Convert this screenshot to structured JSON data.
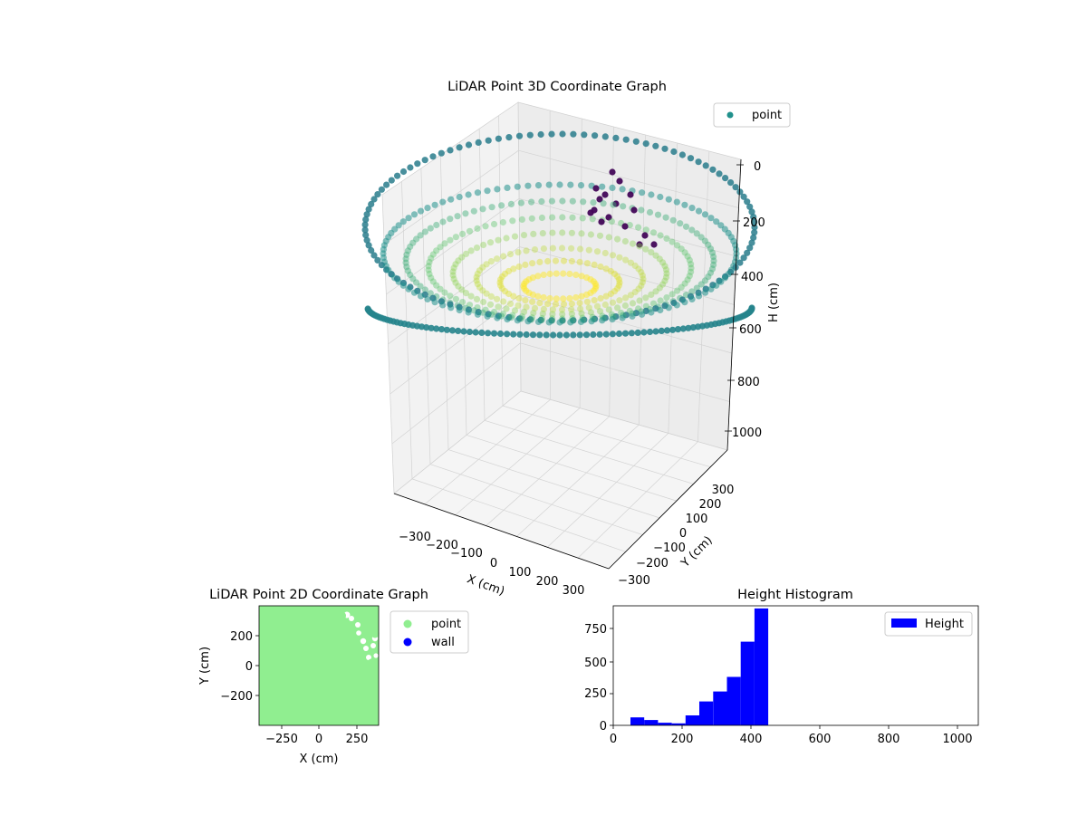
{
  "chart_data": [
    {
      "type": "scatter",
      "projection": "3d",
      "title": "LiDAR Point 3D Coordinate Graph",
      "xlabel": "X (cm)",
      "ylabel": "Y (cm)",
      "zlabel": "H (cm)",
      "xticks": [
        "−300",
        "−200",
        "−100",
        "0",
        "100",
        "200",
        "300"
      ],
      "yticks": [
        "−300",
        "−200",
        "−100",
        "0",
        "100",
        "200",
        "300"
      ],
      "zticks": [
        "0",
        "200",
        "400",
        "600",
        "800",
        "1000"
      ],
      "zlim": [
        1000,
        0
      ],
      "zaxis_inverted": true,
      "colormap": "viridis",
      "colormap_colors": [
        "#440154",
        "#3b528b",
        "#21918c",
        "#5ec962",
        "#fde725"
      ],
      "point_color": "#21918c",
      "legend": {
        "labels": [
          "point"
        ],
        "placement": "upper right"
      },
      "structure": "Dense ring of points about 380 cm radius at heights 350–420 cm forming a bowl shape; a cluster of dark (low height) points near X≈250, Y≈250 at heights 60–250 cm.",
      "grid": true
    },
    {
      "type": "scatter",
      "title": "LiDAR Point 2D Coordinate Graph",
      "xlabel": "X (cm)",
      "ylabel": "Y (cm)",
      "xticks": [
        "−250",
        "0",
        "250"
      ],
      "yticks": [
        "−200",
        "0",
        "200"
      ],
      "xlim": [
        -390,
        390
      ],
      "ylim": [
        -390,
        390
      ],
      "series": [
        {
          "name": "point",
          "color": "#90ee90"
        },
        {
          "name": "wall",
          "color": "#0000ff"
        }
      ],
      "legend": {
        "placement": "outside upper right"
      }
    },
    {
      "type": "bar",
      "title": "Height Histogram",
      "xlabel": "",
      "ylabel": "",
      "xticks": [
        "0",
        "200",
        "400",
        "600",
        "800",
        "1000"
      ],
      "yticks": [
        "0",
        "250",
        "500",
        "750"
      ],
      "xlim": [
        0,
        1060
      ],
      "ylim": [
        0,
        900
      ],
      "bin_edges": [
        50,
        90,
        130,
        170,
        210,
        250,
        290,
        330,
        370,
        410
      ],
      "counts": [
        60,
        40,
        20,
        15,
        75,
        180,
        255,
        365,
        630,
        880
      ],
      "color": "#0000ff",
      "legend": {
        "labels": [
          "Height"
        ],
        "placement": "upper right"
      }
    }
  ]
}
